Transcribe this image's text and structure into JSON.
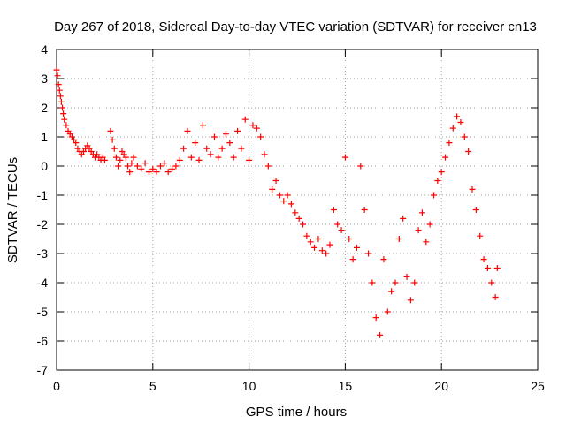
{
  "chart_data": {
    "type": "scatter",
    "title": "Day 267 of 2018, Sidereal Day-to-day VTEC variation (SDTVAR) for receiver cn13",
    "xlabel": "GPS time / hours",
    "ylabel": "SDTVAR / TECUs",
    "xlim": [
      0,
      25
    ],
    "ylim": [
      -7,
      4
    ],
    "xticks": [
      0,
      5,
      10,
      15,
      20,
      25
    ],
    "yticks": [
      -7,
      -6,
      -5,
      -4,
      -3,
      -2,
      -1,
      0,
      1,
      2,
      3,
      4
    ],
    "grid": true,
    "marker": "plus",
    "marker_color": "#ff0000",
    "series": [
      {
        "name": "SDTVAR",
        "x": [
          0.0,
          0.05,
          0.1,
          0.15,
          0.2,
          0.25,
          0.3,
          0.35,
          0.4,
          0.5,
          0.6,
          0.7,
          0.8,
          0.9,
          1.0,
          1.1,
          1.2,
          1.3,
          1.4,
          1.5,
          1.6,
          1.7,
          1.8,
          1.9,
          2.0,
          2.1,
          2.2,
          2.3,
          2.4,
          2.5,
          2.8,
          2.9,
          3.0,
          3.1,
          3.2,
          3.3,
          3.4,
          3.5,
          3.6,
          3.7,
          3.8,
          3.9,
          4.0,
          4.2,
          4.4,
          4.6,
          4.8,
          5.0,
          5.2,
          5.4,
          5.6,
          5.8,
          6.0,
          6.2,
          6.4,
          6.6,
          6.8,
          7.0,
          7.2,
          7.4,
          7.6,
          7.8,
          8.0,
          8.2,
          8.4,
          8.6,
          8.8,
          9.0,
          9.2,
          9.4,
          9.6,
          9.8,
          10.0,
          10.2,
          10.4,
          10.6,
          10.8,
          11.0,
          11.2,
          11.4,
          11.6,
          11.8,
          12.0,
          12.2,
          12.4,
          12.6,
          12.8,
          13.0,
          13.2,
          13.4,
          13.6,
          13.8,
          14.0,
          14.2,
          14.4,
          14.6,
          14.8,
          15.0,
          15.2,
          15.4,
          15.6,
          15.8,
          16.0,
          16.2,
          16.4,
          16.6,
          16.8,
          17.0,
          17.2,
          17.4,
          17.6,
          17.8,
          18.0,
          18.2,
          18.4,
          18.6,
          18.8,
          19.0,
          19.2,
          19.4,
          19.6,
          19.8,
          20.0,
          20.2,
          20.4,
          20.6,
          20.8,
          21.0,
          21.2,
          21.4,
          21.6,
          21.8,
          22.0,
          22.2,
          22.4,
          22.6,
          22.8,
          22.9
        ],
        "y": [
          3.3,
          3.1,
          2.8,
          2.6,
          2.4,
          2.2,
          2.0,
          1.8,
          1.6,
          1.4,
          1.2,
          1.1,
          1.0,
          0.9,
          0.8,
          0.6,
          0.5,
          0.4,
          0.5,
          0.6,
          0.7,
          0.6,
          0.5,
          0.4,
          0.3,
          0.4,
          0.3,
          0.2,
          0.3,
          0.2,
          1.2,
          0.9,
          0.6,
          0.3,
          0.0,
          0.2,
          0.5,
          0.4,
          0.3,
          0.0,
          -0.2,
          0.1,
          0.3,
          0.0,
          -0.1,
          0.1,
          -0.2,
          -0.1,
          -0.2,
          0.0,
          0.1,
          -0.2,
          -0.1,
          0.0,
          0.2,
          0.6,
          1.2,
          0.3,
          0.8,
          0.2,
          1.4,
          0.6,
          0.4,
          1.0,
          0.3,
          0.6,
          1.1,
          0.8,
          0.3,
          1.2,
          0.6,
          1.6,
          0.2,
          1.4,
          1.3,
          1.0,
          0.4,
          0.0,
          -0.8,
          -0.5,
          -1.0,
          -1.2,
          -1.0,
          -1.3,
          -1.6,
          -1.8,
          -2.0,
          -2.4,
          -2.6,
          -2.8,
          -2.5,
          -2.9,
          -3.0,
          -2.7,
          -1.5,
          -2.0,
          -2.2,
          0.3,
          -2.5,
          -3.2,
          -2.8,
          0.0,
          -1.5,
          -3.0,
          -4.0,
          -5.2,
          -5.8,
          -3.2,
          -5.0,
          -4.3,
          -4.0,
          -2.5,
          -1.8,
          -3.8,
          -4.6,
          -4.0,
          -2.2,
          -1.6,
          -2.6,
          -2.0,
          -1.0,
          -0.5,
          -0.2,
          0.3,
          0.8,
          1.3,
          1.7,
          1.5,
          1.0,
          0.5,
          -0.8,
          -1.5,
          -2.4,
          -3.2,
          -3.5,
          -4.0,
          -4.5,
          -3.5
        ]
      }
    ]
  }
}
